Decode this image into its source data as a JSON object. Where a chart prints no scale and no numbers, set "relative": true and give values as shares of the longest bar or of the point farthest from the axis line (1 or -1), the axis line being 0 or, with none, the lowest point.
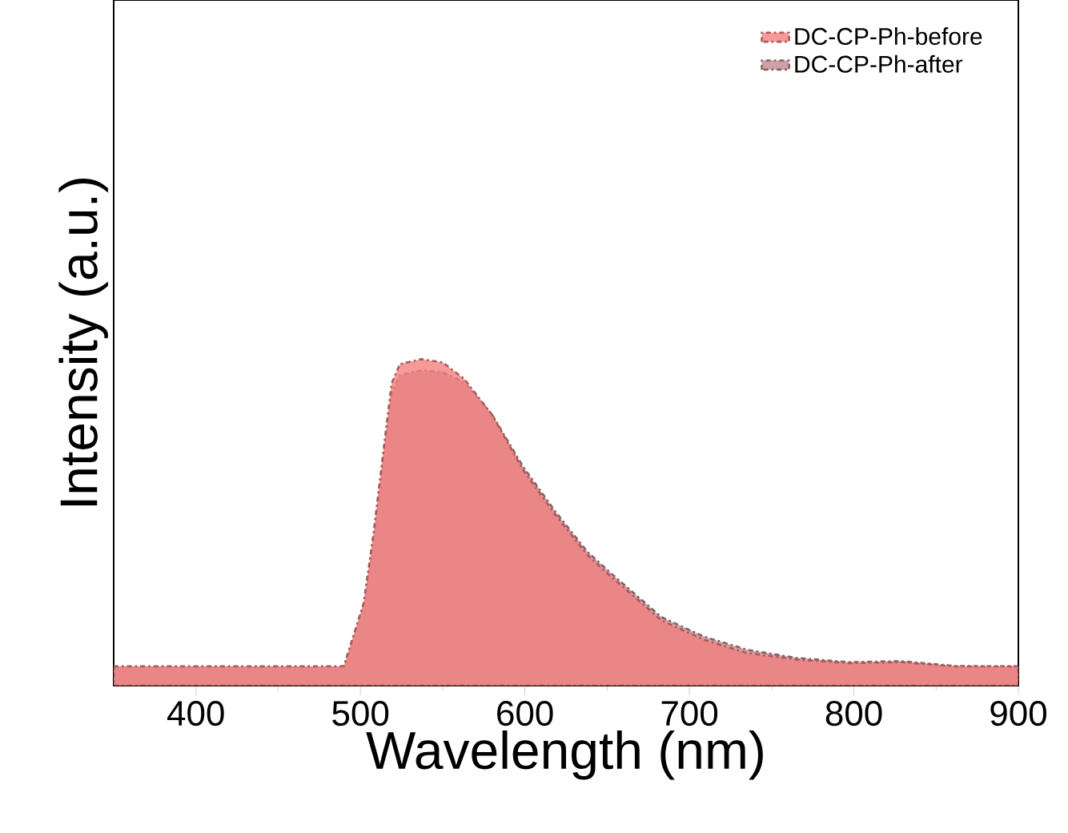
{
  "chart_data": {
    "type": "area",
    "xlabel": "Wavelength (nm)",
    "ylabel": "Intensity (a.u.)",
    "relative": true,
    "xlim": [
      350,
      900
    ],
    "xticks": [
      400,
      500,
      600,
      700,
      800,
      900
    ],
    "legend": "top right",
    "line_style": "dashed",
    "series": [
      {
        "name": "DC-CP-Ph-after",
        "color": "#c08a8e",
        "x": [
          350,
          488,
          490,
          502,
          508,
          515,
          519,
          524,
          537,
          550,
          563,
          580,
          599,
          619,
          638,
          651,
          667,
          683,
          709,
          735,
          765,
          797,
          829,
          862,
          900
        ],
        "values": [
          0.059,
          0.059,
          0.06,
          0.25,
          0.46,
          0.75,
          0.9,
          0.95,
          0.966,
          0.96,
          0.93,
          0.83,
          0.67,
          0.53,
          0.41,
          0.35,
          0.28,
          0.21,
          0.15,
          0.11,
          0.085,
          0.072,
          0.075,
          0.06,
          0.059
        ]
      },
      {
        "name": "DC-CP-Ph-before",
        "color": "#f28080",
        "x": [
          350,
          488,
          490,
          502,
          508,
          515,
          519,
          524,
          537,
          550,
          563,
          580,
          599,
          619,
          638,
          651,
          667,
          683,
          709,
          735,
          765,
          797,
          829,
          862,
          900
        ],
        "values": [
          0.059,
          0.059,
          0.06,
          0.253,
          0.466,
          0.762,
          0.926,
          0.985,
          1,
          0.99,
          0.94,
          0.83,
          0.66,
          0.52,
          0.4,
          0.34,
          0.27,
          0.2,
          0.14,
          0.1,
          0.08,
          0.069,
          0.072,
          0.059,
          0.059
        ]
      }
    ]
  }
}
